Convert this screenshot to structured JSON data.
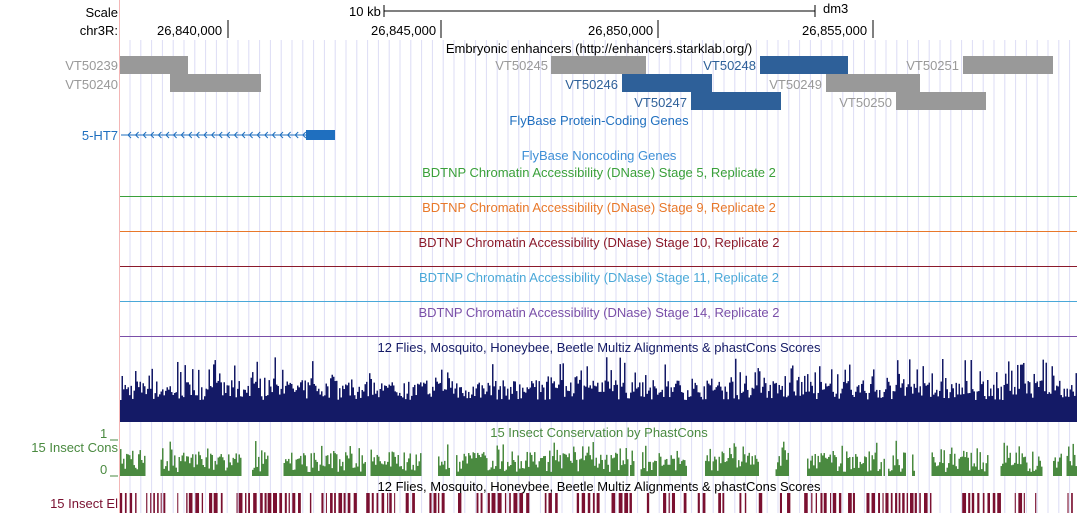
{
  "ruler": {
    "scale_label": "Scale",
    "chrom_label": "chr3R:",
    "scale_bar_text": "10 kb",
    "assembly": "dm3",
    "positions": [
      "26,840,000",
      "26,845,000",
      "26,850,000",
      "26,855,000"
    ]
  },
  "tracks": {
    "enhancers": {
      "title": "Embryonic enhancers (http://enhancers.starklab.org/)",
      "items": [
        {
          "name": "VT50239",
          "color": "#999999",
          "label_color": "#999999"
        },
        {
          "name": "VT50240",
          "color": "#999999",
          "label_color": "#999999"
        },
        {
          "name": "VT50245",
          "color": "#999999",
          "label_color": "#999999"
        },
        {
          "name": "VT50246",
          "color": "#2e6099",
          "label_color": "#2e6099"
        },
        {
          "name": "VT50247",
          "color": "#2e6099",
          "label_color": "#2e6099"
        },
        {
          "name": "VT50248",
          "color": "#2e6099",
          "label_color": "#2e6099"
        },
        {
          "name": "VT50249",
          "color": "#999999",
          "label_color": "#999999"
        },
        {
          "name": "VT50250",
          "color": "#999999",
          "label_color": "#999999"
        },
        {
          "name": "VT50251",
          "color": "#999999",
          "label_color": "#999999"
        }
      ]
    },
    "flybase_coding": {
      "title": "FlyBase Protein-Coding Genes",
      "color": "#1f6fbf",
      "gene": "5-HT7"
    },
    "flybase_noncoding": {
      "title": "FlyBase Noncoding Genes",
      "color": "#3e8fd6"
    },
    "dnase": [
      {
        "title": "BDTNP Chromatin Accessibility (DNase) Stage 5, Replicate 2",
        "color": "#3aa03a"
      },
      {
        "title": "BDTNP Chromatin Accessibility (DNase) Stage 9, Replicate 2",
        "color": "#e8782a"
      },
      {
        "title": "BDTNP Chromatin Accessibility (DNase) Stage 10, Replicate 2",
        "color": "#8b1a2b"
      },
      {
        "title": "BDTNP Chromatin Accessibility (DNase) Stage 11, Replicate 2",
        "color": "#4aa8d8"
      },
      {
        "title": "BDTNP Chromatin Accessibility (DNase) Stage 14, Replicate 2",
        "color": "#7a4fa8"
      }
    ],
    "multiz": {
      "title": "12 Flies, Mosquito, Honeybee, Beetle Multiz Alignments & phastCons Scores",
      "color": "#141a66"
    },
    "cons": {
      "title": "15 Insect Conservation by PhastCons",
      "left_label": "15 Insect Cons",
      "y_top": "1",
      "y_bottom": "0",
      "color": "#4a8a40",
      "title_color": "#4a8a40"
    },
    "multiz2": {
      "title": "12 Flies, Mosquito, Honeybee, Beetle Multiz Alignments & phastCons Scores",
      "color": "#000000"
    },
    "elements": {
      "left_label": "15 Insect El",
      "color": "#7a1030"
    }
  }
}
